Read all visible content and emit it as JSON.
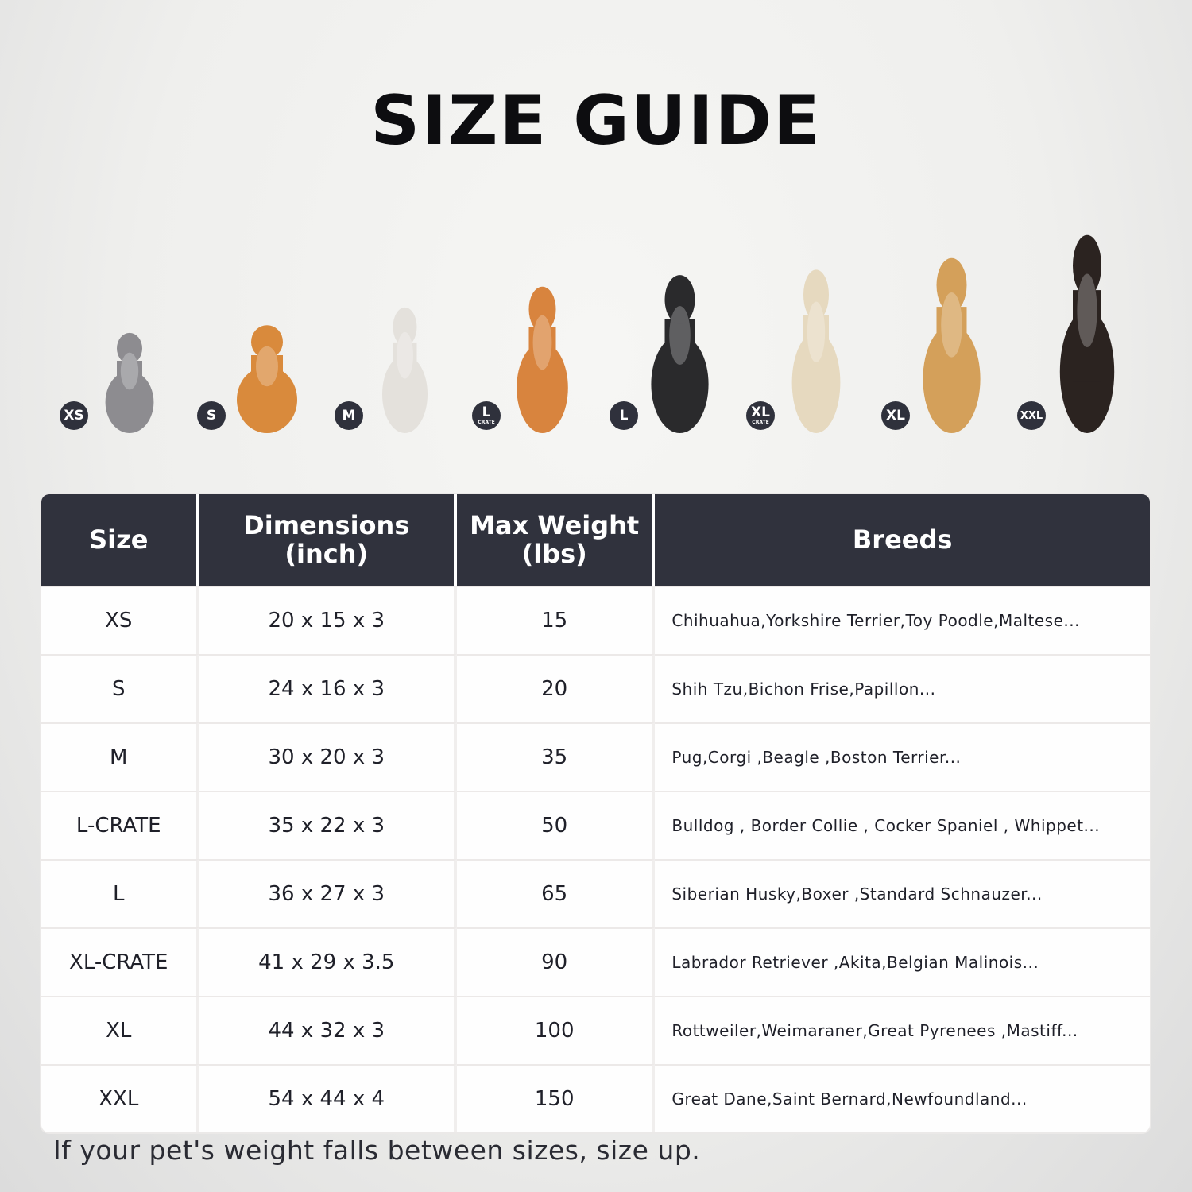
{
  "title": "SIZE GUIDE",
  "pets": [
    {
      "badge": "XS",
      "sub": "",
      "animal": "cat",
      "color": "#8d8c90"
    },
    {
      "badge": "S",
      "sub": "",
      "animal": "pomeranian",
      "color": "#d98a3c"
    },
    {
      "badge": "M",
      "sub": "",
      "animal": "french-bulldog",
      "color": "#e4e1dc"
    },
    {
      "badge": "L",
      "sub": "CRATE",
      "animal": "shiba-inu",
      "color": "#d8843e"
    },
    {
      "badge": "L",
      "sub": "",
      "animal": "border-collie",
      "color": "#2a2a2c"
    },
    {
      "badge": "XL",
      "sub": "CRATE",
      "animal": "labrador",
      "color": "#e6d9bf"
    },
    {
      "badge": "XL",
      "sub": "",
      "animal": "golden-retriever",
      "color": "#d4a05a"
    },
    {
      "badge": "XXL",
      "sub": "",
      "animal": "doberman",
      "color": "#2b2320"
    }
  ],
  "table": {
    "headers": [
      [
        "Size",
        ""
      ],
      [
        "Dimensions",
        "(inch)"
      ],
      [
        "Max Weight",
        "(lbs)"
      ],
      [
        "Breeds",
        ""
      ]
    ],
    "rows": [
      [
        "XS",
        "20 x 15 x 3",
        "15",
        "Chihuahua,Yorkshire Terrier,Toy Poodle,Maltese..."
      ],
      [
        "S",
        "24 x 16 x 3",
        "20",
        "Shih Tzu,Bichon Frise,Papillon..."
      ],
      [
        "M",
        "30 x 20 x 3",
        "35",
        "Pug,Corgi ,Beagle ,Boston Terrier..."
      ],
      [
        "L-CRATE",
        "35 x 22 x 3",
        "50",
        "Bulldog , Border Collie , Cocker Spaniel , Whippet..."
      ],
      [
        "L",
        "36 x 27 x 3",
        "65",
        "Siberian Husky,Boxer ,Standard Schnauzer..."
      ],
      [
        "XL-CRATE",
        "41 x 29 x 3.5",
        "90",
        "Labrador Retriever ,Akita,Belgian Malinois..."
      ],
      [
        "XL",
        "44 x 32 x 3",
        "100",
        "Rottweiler,Weimaraner,Great Pyrenees ,Mastiff..."
      ],
      [
        "XXL",
        "54 x 44 x 4",
        "150",
        "Great Dane,Saint Bernard,Newfoundland..."
      ]
    ]
  },
  "colors": {
    "header_bg": "#30323d",
    "badge_bg": "#2f313c"
  },
  "note": "If your pet's weight falls between sizes, size up."
}
